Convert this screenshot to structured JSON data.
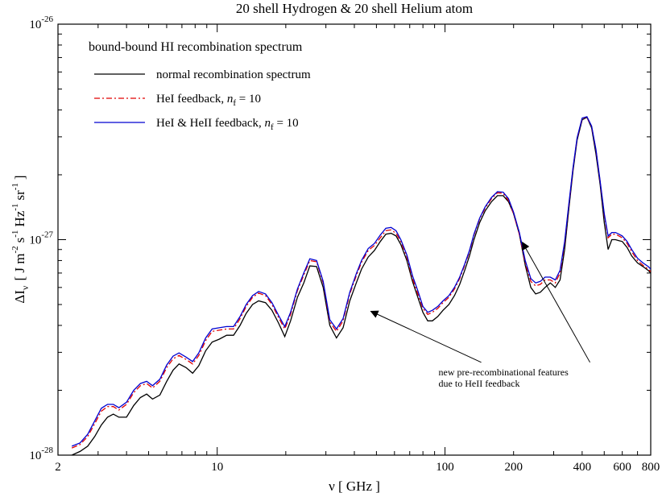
{
  "chart_data": {
    "type": "line",
    "title": "20 shell Hydrogen & 20 shell Helium atom",
    "xlabel": {
      "symbol": "ν",
      "unit": "[ GHz ]"
    },
    "ylabel": {
      "symbol": "ΔI",
      "sub": "ν",
      "unit_parts": [
        "[ J m",
        "-2",
        "s",
        "-1",
        "Hz",
        "-1",
        "sr",
        "-1",
        "]"
      ]
    },
    "x_scale": "log",
    "y_scale": "log",
    "xlim": [
      2,
      800
    ],
    "ylim": [
      1e-28,
      1e-26
    ],
    "x_ticks": [
      {
        "value": 2,
        "label": "2"
      },
      {
        "value": 10,
        "label": "10"
      },
      {
        "value": 100,
        "label": "100"
      },
      {
        "value": 200,
        "label": "200"
      },
      {
        "value": 400,
        "label": "400"
      },
      {
        "value": 600,
        "label": "600"
      },
      {
        "value": 800,
        "label": "800"
      }
    ],
    "y_ticks": [
      {
        "value": 1e-28,
        "base": "10",
        "exp": "-28"
      },
      {
        "value": 1e-27,
        "base": "10",
        "exp": "-27"
      },
      {
        "value": 1e-26,
        "base": "10",
        "exp": "-26"
      }
    ],
    "legend_title": "bound-bound HI recombination spectrum",
    "legend_position": "top-left",
    "series": [
      {
        "name": "normal recombination spectrum",
        "color": "#000000",
        "dash": "",
        "x": [
          2.3,
          2.5,
          2.7,
          2.9,
          3.1,
          3.3,
          3.5,
          3.7,
          4.0,
          4.3,
          4.6,
          4.9,
          5.2,
          5.6,
          6.0,
          6.4,
          6.8,
          7.3,
          7.8,
          8.3,
          8.9,
          9.5,
          10.2,
          11.0,
          11.8,
          12.6,
          13.4,
          14.3,
          15.2,
          16.3,
          17.4,
          18.6,
          19.8,
          21.0,
          22.5,
          24.0,
          25.5,
          27.3,
          29.2,
          31.2,
          33.4,
          35.7,
          38.2,
          40.8,
          43.0,
          46.0,
          49.0,
          52.0,
          55.0,
          58.0,
          61.0,
          64.0,
          68.0,
          72.0,
          76.0,
          80.0,
          84.0,
          88.0,
          93.0,
          98.0,
          104.0,
          110.0,
          116.0,
          122.0,
          128.0,
          134.0,
          142.0,
          150.0,
          160.0,
          170.0,
          180.0,
          190.0,
          200.0,
          212.0,
          225.0,
          238.0,
          250.0,
          262.0,
          275.0,
          290.0,
          305.0,
          320.0,
          335.0,
          350.0,
          365.0,
          380.0,
          400.0,
          420.0,
          440.0,
          460.0,
          480.0,
          500.0,
          520.0,
          540.0,
          560.0,
          580.0,
          600.0,
          630.0,
          660.0,
          700.0,
          740.0,
          780.0,
          800.0
        ],
        "y": [
          1e-28,
          1.04e-28,
          1.1e-28,
          1.22e-28,
          1.38e-28,
          1.5e-28,
          1.55e-28,
          1.5e-28,
          1.5e-28,
          1.7e-28,
          1.85e-28,
          1.92e-28,
          1.82e-28,
          1.9e-28,
          2.2e-28,
          2.48e-28,
          2.65e-28,
          2.55e-28,
          2.4e-28,
          2.6e-28,
          3.05e-28,
          3.35e-28,
          3.45e-28,
          3.6e-28,
          3.6e-28,
          4e-28,
          4.55e-28,
          5e-28,
          5.2e-28,
          5.1e-28,
          4.7e-28,
          4.1e-28,
          3.55e-28,
          4.2e-28,
          5.4e-28,
          6.3e-28,
          7.55e-28,
          7.5e-28,
          6e-28,
          4e-28,
          3.5e-28,
          3.9e-28,
          5.2e-28,
          6.3e-28,
          7.3e-28,
          8.3e-28,
          8.9e-28,
          9.8e-28,
          1.06e-27,
          1.07e-27,
          1.04e-27,
          9.5e-28,
          8e-28,
          6.4e-28,
          5.4e-28,
          4.6e-28,
          4.2e-28,
          4.2e-28,
          4.4e-28,
          4.7e-28,
          5e-28,
          5.5e-28,
          6.2e-28,
          7.2e-28,
          8.4e-28,
          1e-27,
          1.2e-27,
          1.36e-27,
          1.5e-27,
          1.6e-27,
          1.6e-27,
          1.5e-27,
          1.32e-27,
          1.06e-27,
          7.6e-28,
          6e-28,
          5.6e-28,
          5.7e-28,
          6e-28,
          6.3e-28,
          6e-28,
          6.5e-28,
          9e-28,
          1.4e-27,
          2.1e-27,
          2.9e-27,
          3.6e-27,
          3.7e-27,
          3.3e-27,
          2.5e-27,
          1.8e-27,
          1.2e-27,
          9e-28,
          1e-27,
          1e-27,
          9.9e-28,
          9.8e-28,
          9.2e-28,
          8.4e-28,
          7.8e-28,
          7.5e-28,
          7.2e-28,
          7e-28
        ]
      },
      {
        "name": "HeI feedback, ",
        "name_suffix": {
          "var": "n",
          "sub": "f",
          "rest": " = 10"
        },
        "color": "#e00000",
        "dash": "7,3,2,3",
        "x": [
          2.3,
          2.5,
          2.7,
          2.9,
          3.1,
          3.3,
          3.5,
          3.7,
          4.0,
          4.3,
          4.6,
          4.9,
          5.2,
          5.6,
          6.0,
          6.4,
          6.8,
          7.3,
          7.8,
          8.3,
          8.9,
          9.5,
          10.2,
          11.0,
          11.8,
          12.6,
          13.4,
          14.3,
          15.2,
          16.3,
          17.4,
          18.6,
          19.8,
          21.0,
          22.5,
          24.0,
          25.5,
          27.3,
          29.2,
          31.2,
          33.4,
          35.7,
          38.2,
          40.8,
          43.0,
          46.0,
          49.0,
          52.0,
          55.0,
          58.0,
          61.0,
          64.0,
          68.0,
          72.0,
          76.0,
          80.0,
          84.0,
          88.0,
          93.0,
          98.0,
          104.0,
          110.0,
          116.0,
          122.0,
          128.0,
          134.0,
          142.0,
          150.0,
          160.0,
          170.0,
          180.0,
          190.0,
          200.0,
          212.0,
          225.0,
          238.0,
          250.0,
          262.0,
          275.0,
          290.0,
          305.0,
          320.0,
          335.0,
          350.0,
          365.0,
          380.0,
          400.0,
          420.0,
          440.0,
          460.0,
          480.0,
          500.0,
          520.0,
          540.0,
          560.0,
          580.0,
          600.0,
          630.0,
          660.0,
          700.0,
          740.0,
          780.0,
          800.0
        ],
        "y": [
          1.08e-28,
          1.12e-28,
          1.22e-28,
          1.4e-28,
          1.6e-28,
          1.68e-28,
          1.68e-28,
          1.62e-28,
          1.72e-28,
          1.95e-28,
          2.1e-28,
          2.15e-28,
          2.05e-28,
          2.2e-28,
          2.55e-28,
          2.8e-28,
          2.9e-28,
          2.78e-28,
          2.65e-28,
          2.9e-28,
          3.4e-28,
          3.75e-28,
          3.8e-28,
          3.85e-28,
          3.85e-28,
          4.3e-28,
          4.9e-28,
          5.4e-28,
          5.65e-28,
          5.5e-28,
          5e-28,
          4.35e-28,
          3.85e-28,
          4.5e-28,
          5.8e-28,
          6.85e-28,
          8e-28,
          7.9e-28,
          6.3e-28,
          4.15e-28,
          3.75e-28,
          4.2e-28,
          5.6e-28,
          6.8e-28,
          7.85e-28,
          8.9e-28,
          9.4e-28,
          1.02e-27,
          1.1e-27,
          1.11e-27,
          1.07e-27,
          9.8e-28,
          8.3e-28,
          6.6e-28,
          5.6e-28,
          4.8e-28,
          4.5e-28,
          4.6e-28,
          4.8e-28,
          5.1e-28,
          5.4e-28,
          5.9e-28,
          6.6e-28,
          7.6e-28,
          8.8e-28,
          1.05e-27,
          1.25e-27,
          1.4e-27,
          1.55e-27,
          1.65e-27,
          1.64e-27,
          1.52e-27,
          1.32e-27,
          1.06e-27,
          7.8e-28,
          6.4e-28,
          6.1e-28,
          6.2e-28,
          6.5e-28,
          6.5e-28,
          6.3e-28,
          7e-28,
          9.6e-28,
          1.45e-27,
          2.15e-27,
          2.95e-27,
          3.65e-27,
          3.7e-27,
          3.35e-27,
          2.6e-27,
          1.85e-27,
          1.3e-27,
          1.02e-27,
          1.06e-27,
          1.06e-27,
          1.04e-27,
          1.02e-27,
          9.6e-28,
          8.8e-28,
          8e-28,
          7.6e-28,
          7.3e-28,
          7.1e-28
        ]
      },
      {
        "name": "HeI & HeII feedback, ",
        "name_suffix": {
          "var": "n",
          "sub": "f",
          "rest": " = 10"
        },
        "color": "#0000d0",
        "dash": "",
        "x": [
          2.3,
          2.5,
          2.7,
          2.9,
          3.1,
          3.3,
          3.5,
          3.7,
          4.0,
          4.3,
          4.6,
          4.9,
          5.2,
          5.6,
          6.0,
          6.4,
          6.8,
          7.3,
          7.8,
          8.3,
          8.9,
          9.5,
          10.2,
          11.0,
          11.8,
          12.6,
          13.4,
          14.3,
          15.2,
          16.3,
          17.4,
          18.6,
          19.8,
          21.0,
          22.5,
          24.0,
          25.5,
          27.3,
          29.2,
          31.2,
          33.4,
          35.7,
          38.2,
          40.8,
          43.0,
          46.0,
          49.0,
          52.0,
          55.0,
          58.0,
          61.0,
          64.0,
          68.0,
          72.0,
          76.0,
          80.0,
          84.0,
          88.0,
          93.0,
          98.0,
          104.0,
          110.0,
          116.0,
          122.0,
          128.0,
          134.0,
          142.0,
          150.0,
          160.0,
          170.0,
          180.0,
          190.0,
          200.0,
          212.0,
          225.0,
          238.0,
          250.0,
          262.0,
          275.0,
          290.0,
          305.0,
          320.0,
          335.0,
          350.0,
          365.0,
          380.0,
          400.0,
          420.0,
          440.0,
          460.0,
          480.0,
          500.0,
          520.0,
          540.0,
          560.0,
          580.0,
          600.0,
          630.0,
          660.0,
          700.0,
          740.0,
          780.0,
          800.0
        ],
        "y": [
          1.1e-28,
          1.14e-28,
          1.25e-28,
          1.44e-28,
          1.65e-28,
          1.72e-28,
          1.72e-28,
          1.66e-28,
          1.76e-28,
          2e-28,
          2.15e-28,
          2.2e-28,
          2.1e-28,
          2.25e-28,
          2.62e-28,
          2.88e-28,
          2.98e-28,
          2.85e-28,
          2.72e-28,
          2.98e-28,
          3.5e-28,
          3.85e-28,
          3.9e-28,
          3.95e-28,
          3.95e-28,
          4.4e-28,
          5e-28,
          5.5e-28,
          5.75e-28,
          5.6e-28,
          5.1e-28,
          4.45e-28,
          3.95e-28,
          4.6e-28,
          5.9e-28,
          7e-28,
          8.15e-28,
          8e-28,
          6.4e-28,
          4.25e-28,
          3.85e-28,
          4.3e-28,
          5.7e-28,
          6.95e-28,
          8e-28,
          9.1e-28,
          9.6e-28,
          1.05e-27,
          1.13e-27,
          1.14e-27,
          1.1e-27,
          1e-27,
          8.5e-28,
          6.8e-28,
          5.8e-28,
          4.9e-28,
          4.6e-28,
          4.7e-28,
          4.9e-28,
          5.2e-28,
          5.5e-28,
          6e-28,
          6.7e-28,
          7.7e-28,
          8.9e-28,
          1.06e-27,
          1.26e-27,
          1.42e-27,
          1.57e-27,
          1.67e-27,
          1.66e-27,
          1.55e-27,
          1.34e-27,
          1.08e-27,
          8e-28,
          6.6e-28,
          6.3e-28,
          6.4e-28,
          6.7e-28,
          6.7e-28,
          6.5e-28,
          7.2e-28,
          9.8e-28,
          1.47e-27,
          2.17e-27,
          2.97e-27,
          3.67e-27,
          3.72e-27,
          3.37e-27,
          2.62e-27,
          1.87e-27,
          1.32e-27,
          1.04e-27,
          1.08e-27,
          1.08e-27,
          1.06e-27,
          1.04e-27,
          9.8e-28,
          9e-28,
          8.2e-28,
          7.8e-28,
          7.5e-28,
          7.3e-28
        ]
      }
    ],
    "annotations": [
      {
        "lines": [
          "new pre-recombinational features",
          "due to HeII feedback"
        ],
        "arrow_targets": [
          {
            "x": 45,
            "y": 4.9e-28
          },
          {
            "x": 215,
            "y": 1.06e-27
          }
        ],
        "anchor": {
          "x": 100,
          "y": 3.55e-28
        }
      }
    ]
  }
}
